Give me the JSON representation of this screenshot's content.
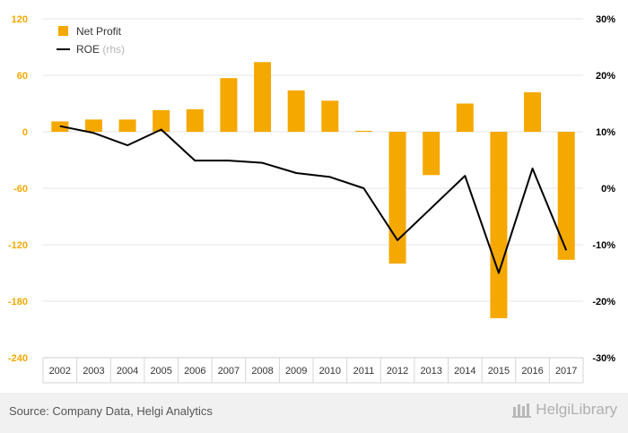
{
  "chart_data": {
    "type": "bar",
    "categories": [
      "2002",
      "2003",
      "2004",
      "2005",
      "2006",
      "2007",
      "2008",
      "2009",
      "2010",
      "2011",
      "2012",
      "2013",
      "2014",
      "2015",
      "2016",
      "2017"
    ],
    "series": [
      {
        "name": "Net Profit",
        "kind": "bar",
        "axis": "left",
        "color": "#f5a800",
        "values": [
          11,
          13,
          13,
          23,
          24,
          57,
          74,
          44,
          33,
          1,
          -140,
          -46,
          30,
          -198,
          42,
          -136
        ]
      },
      {
        "name": "ROE",
        "legend_suffix": "(rhs)",
        "kind": "line",
        "axis": "right",
        "color": "#000000",
        "values": [
          11.0,
          9.8,
          7.6,
          10.4,
          4.9,
          4.9,
          4.5,
          2.7,
          2.0,
          0.0,
          -9.2,
          -3.5,
          2.2,
          -15.0,
          3.5,
          -11.0
        ]
      }
    ],
    "left_axis": {
      "min": -240,
      "max": 120,
      "ticks": [
        "120",
        "60",
        "0",
        "-60",
        "-120",
        "-180",
        "-240"
      ],
      "color": "#f5a800"
    },
    "right_axis": {
      "min": -30,
      "max": 30,
      "ticks": [
        "30%",
        "20%",
        "10%",
        "0%",
        "-10%",
        "-20%",
        "-30%"
      ],
      "color": "#000000"
    },
    "grid": true,
    "legend_position": "top-left"
  },
  "footer": {
    "source": "Source: Company Data, Helgi Analytics",
    "brand": "HelgiLibrary"
  }
}
